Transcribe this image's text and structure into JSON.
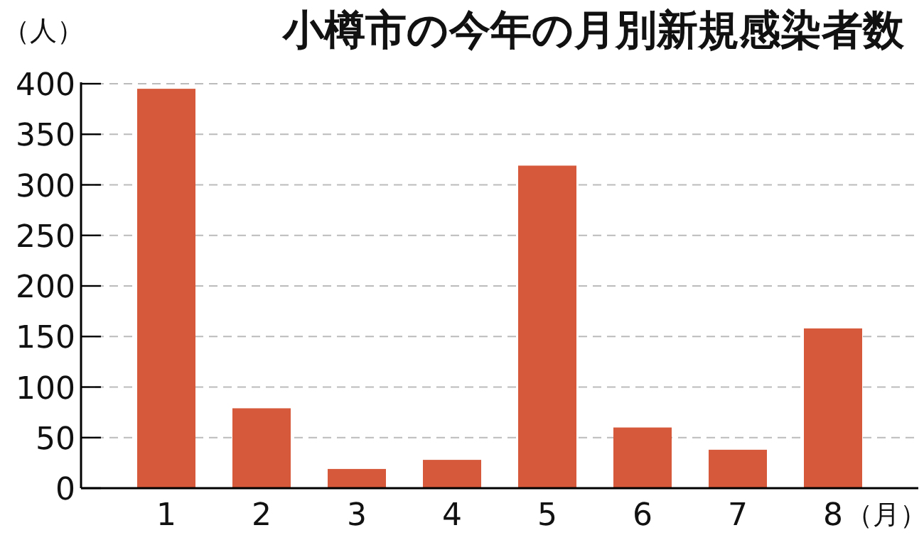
{
  "chart_data": {
    "type": "bar",
    "title": "小樽市の今年の月別新規感染者数",
    "ylabel": "（人）",
    "xlabel": "（月）",
    "categories": [
      "1",
      "2",
      "3",
      "4",
      "5",
      "6",
      "7",
      "8"
    ],
    "values": [
      395,
      79,
      19,
      28,
      319,
      60,
      38,
      158
    ],
    "color": "#d5593a",
    "ylim": [
      0,
      400
    ],
    "yticks": [
      0,
      50,
      100,
      150,
      200,
      250,
      300,
      350,
      400
    ],
    "grid": "y"
  }
}
